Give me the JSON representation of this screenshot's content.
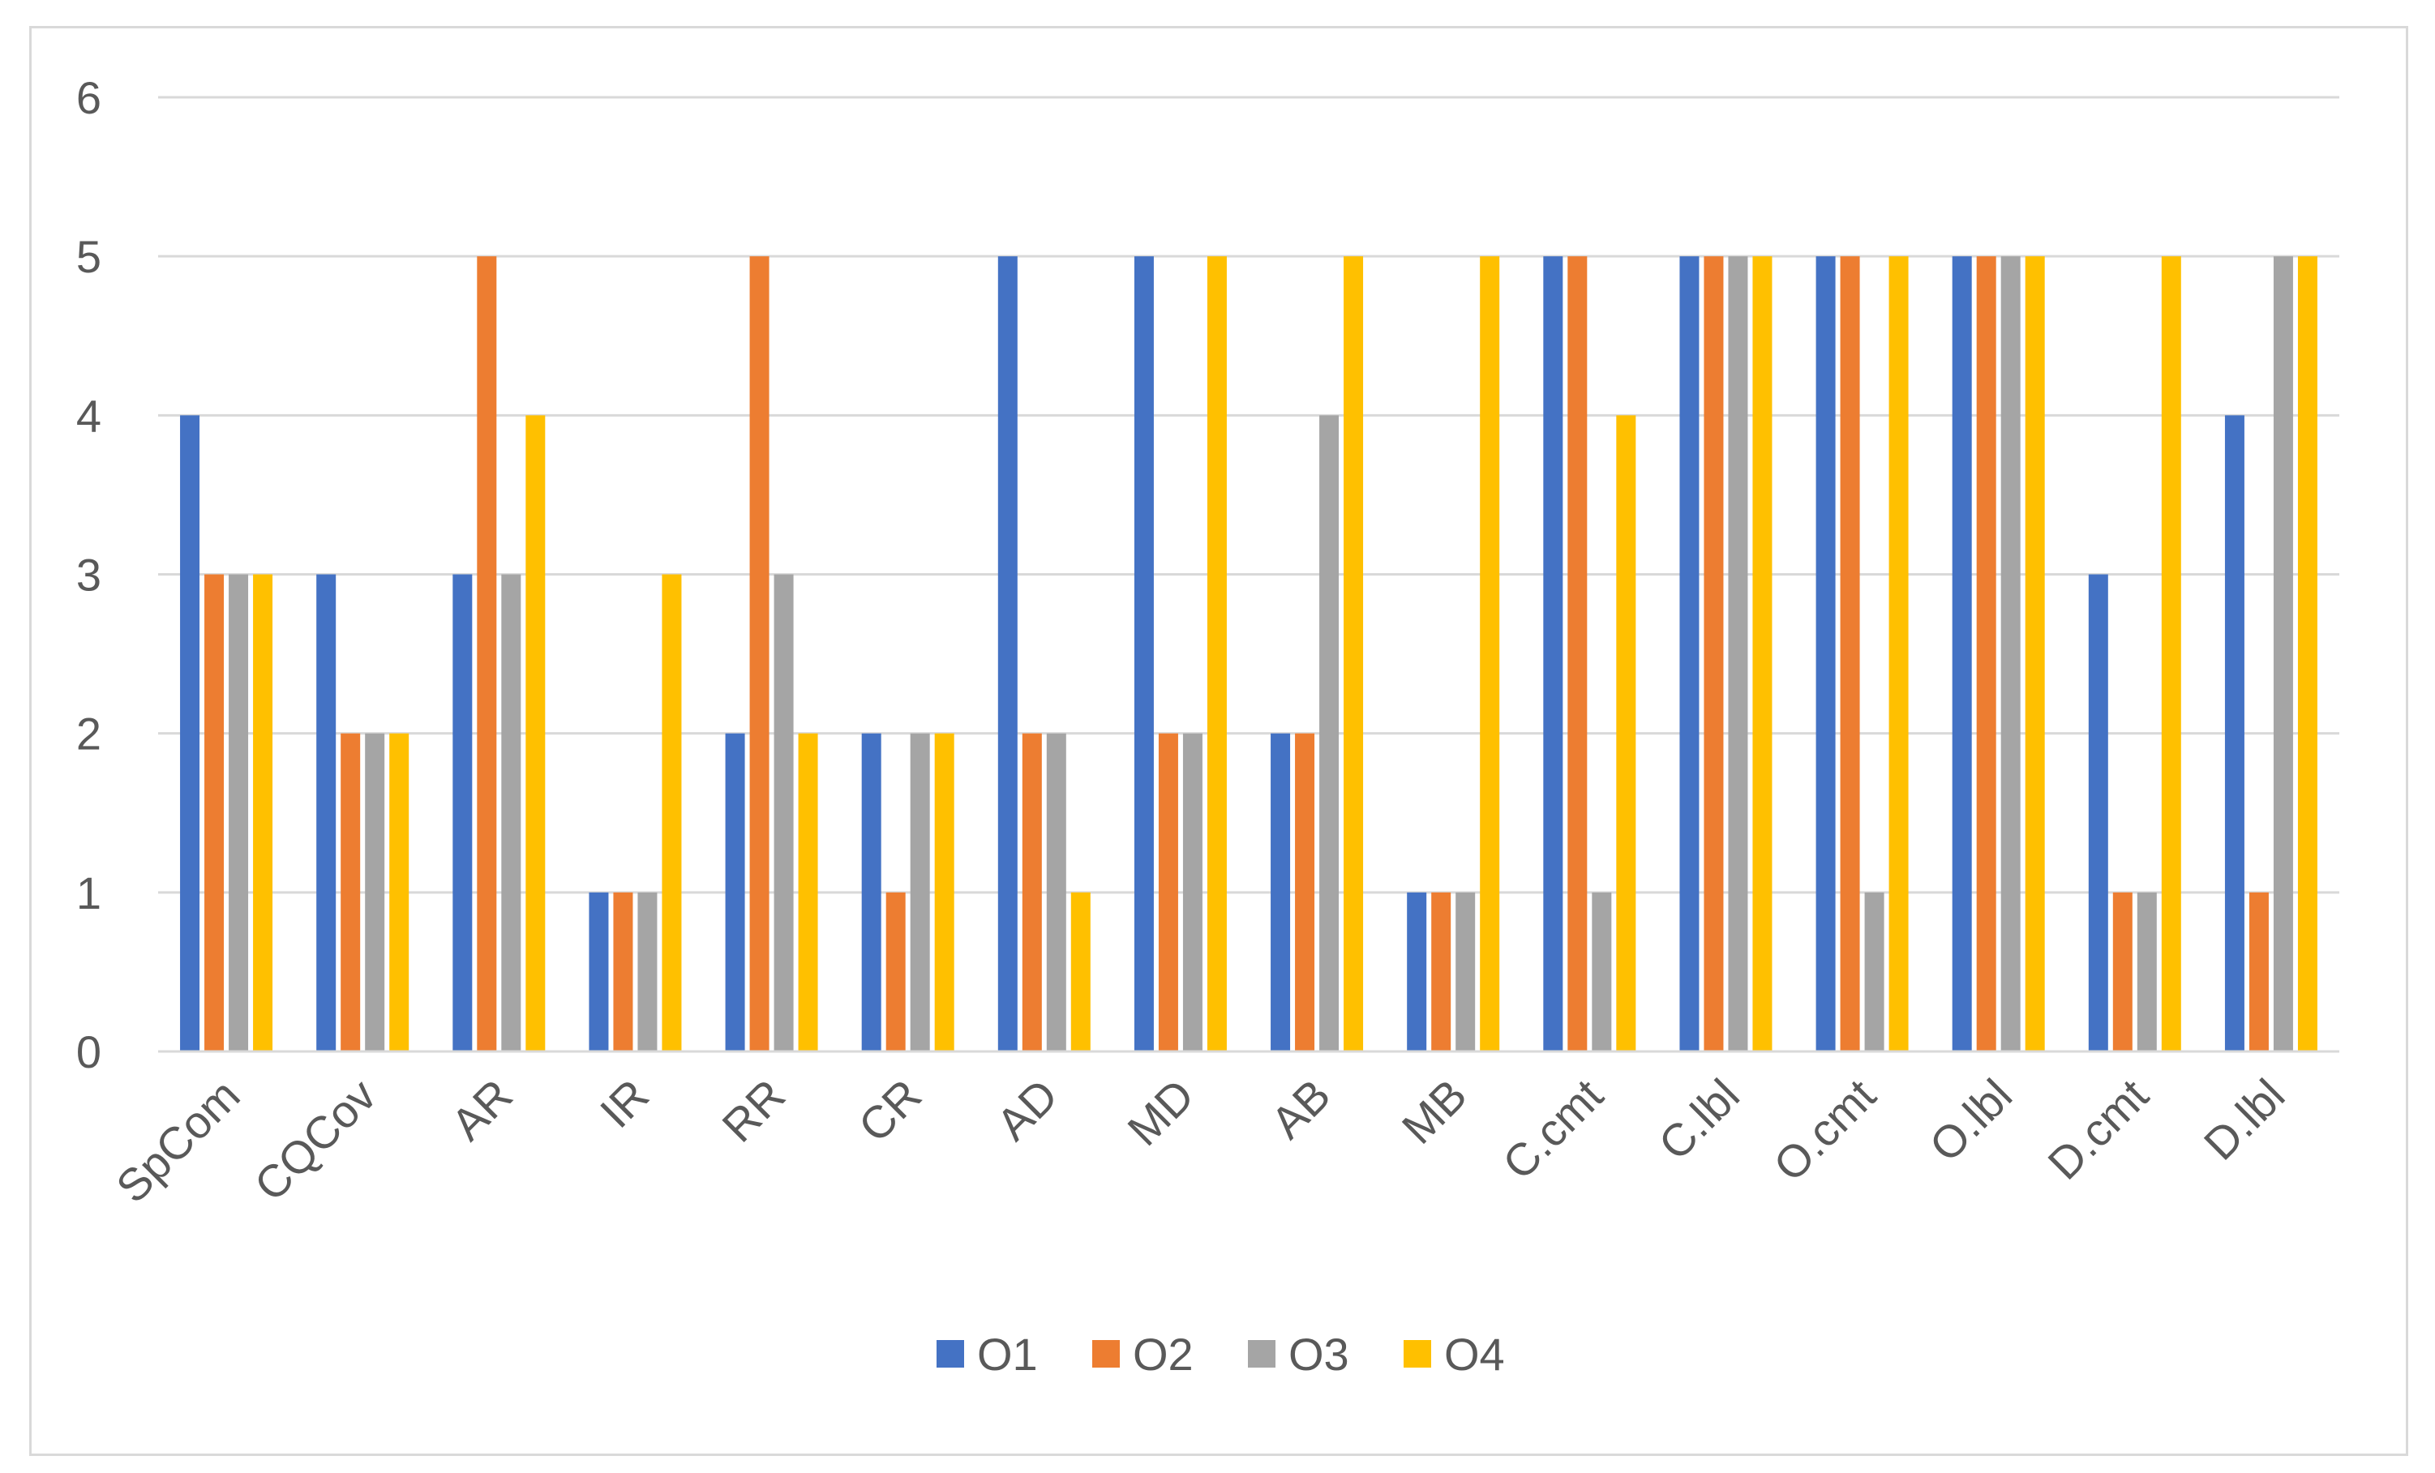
{
  "chart_data": {
    "type": "bar",
    "title": "",
    "xlabel": "",
    "ylabel": "",
    "ylim": [
      0,
      6
    ],
    "yticks": [
      "0",
      "1",
      "2",
      "3",
      "4",
      "5",
      "6"
    ],
    "grid": true,
    "legend_position": "bottom",
    "categories": [
      "SpCom",
      "CQCov",
      "AR",
      "IR",
      "RR",
      "CR",
      "AD",
      "MD",
      "AB",
      "MB",
      "C.cmt",
      "C.lbl",
      "O.cmt",
      "O.lbl",
      "D.cmt",
      "D.lbl"
    ],
    "series": [
      {
        "name": "O1",
        "color": "#4472c4",
        "values": [
          4,
          3,
          3,
          1,
          2,
          2,
          5,
          5,
          2,
          1,
          5,
          5,
          5,
          5,
          3,
          4
        ]
      },
      {
        "name": "O2",
        "color": "#ed7d31",
        "values": [
          3,
          2,
          5,
          1,
          5,
          1,
          2,
          2,
          2,
          1,
          5,
          5,
          5,
          5,
          1,
          1
        ]
      },
      {
        "name": "O3",
        "color": "#a5a5a5",
        "values": [
          3,
          2,
          3,
          1,
          3,
          2,
          2,
          2,
          4,
          1,
          1,
          5,
          1,
          5,
          1,
          5
        ]
      },
      {
        "name": "O4",
        "color": "#ffc000",
        "values": [
          3,
          2,
          4,
          3,
          2,
          2,
          1,
          5,
          5,
          5,
          4,
          5,
          5,
          5,
          5,
          5
        ]
      }
    ]
  }
}
